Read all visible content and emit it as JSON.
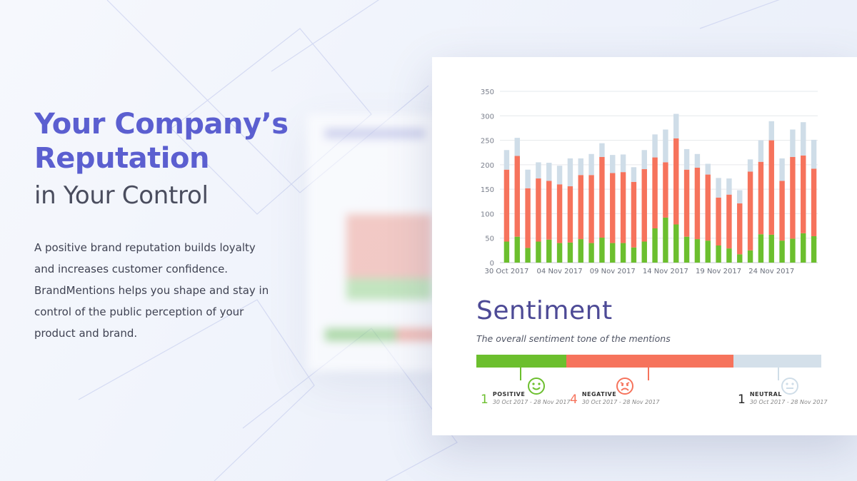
{
  "hero": {
    "title_line1": "Your Company’s",
    "title_line2": "Reputation",
    "title_line3": "in Your Control",
    "description": "A positive brand reputation builds loyalty and increases customer confidence. BrandMentions helps you shape and stay in control of the public perception of your product and brand."
  },
  "chart_data": {
    "type": "bar",
    "stacked": true,
    "ylim": [
      0,
      350
    ],
    "yticks": [
      0,
      50,
      100,
      150,
      200,
      250,
      300,
      350
    ],
    "xtick_labels": [
      "30 Oct 2017",
      "04 Nov 2017",
      "09 Nov 2017",
      "14 Nov 2017",
      "19 Nov 2017",
      "24 Nov 2017"
    ],
    "categories": [
      "30 Oct",
      "31 Oct",
      "01 Nov",
      "02 Nov",
      "03 Nov",
      "04 Nov",
      "05 Nov",
      "06 Nov",
      "07 Nov",
      "08 Nov",
      "09 Nov",
      "10 Nov",
      "11 Nov",
      "12 Nov",
      "13 Nov",
      "14 Nov",
      "15 Nov",
      "16 Nov",
      "17 Nov",
      "18 Nov",
      "19 Nov",
      "20 Nov",
      "21 Nov",
      "22 Nov",
      "23 Nov",
      "24 Nov",
      "25 Nov",
      "26 Nov",
      "27 Nov",
      "28 Nov"
    ],
    "series": [
      {
        "color": "#6cbf2e",
        "values": [
          43,
          53,
          30,
          43,
          47,
          40,
          41,
          48,
          40,
          51,
          40,
          40,
          31,
          43,
          70,
          92,
          78,
          53,
          48,
          45,
          35,
          29,
          17,
          25,
          58,
          57,
          45,
          49,
          60,
          54
        ]
      },
      {
        "color": "#f6735c",
        "values": [
          147,
          165,
          122,
          129,
          120,
          120,
          115,
          131,
          139,
          165,
          143,
          145,
          134,
          148,
          145,
          113,
          176,
          137,
          146,
          135,
          98,
          110,
          104,
          161,
          148,
          193,
          122,
          167,
          159,
          138
        ]
      },
      {
        "color": "#cfdde8",
        "values": [
          40,
          37,
          38,
          33,
          37,
          38,
          57,
          34,
          43,
          28,
          37,
          36,
          30,
          39,
          47,
          67,
          50,
          42,
          28,
          22,
          40,
          33,
          27,
          25,
          44,
          39,
          46,
          56,
          68,
          59
        ]
      }
    ],
    "grid": true,
    "legend": "none"
  },
  "sentiment": {
    "title": "Sentiment",
    "subtitle": "The overall sentiment tone of the mentions",
    "shares": {
      "positive": 0.26,
      "negative": 0.485,
      "neutral": 0.255
    },
    "colors": {
      "positive": "#6cbf2e",
      "negative": "#f6735c",
      "neutral": "#d4e0ea"
    },
    "positive": {
      "count": "1",
      "label": "POSITIVE",
      "dates": "30 Oct 2017 - 28 Nov 2017"
    },
    "negative": {
      "count": "4",
      "label": "NEGATIVE",
      "dates": "30 Oct 2017 - 28 Nov 2017"
    },
    "neutral": {
      "count": "1",
      "label": "NEUTRAL",
      "dates": "30 Oct 2017 - 28 Nov 2017"
    }
  }
}
